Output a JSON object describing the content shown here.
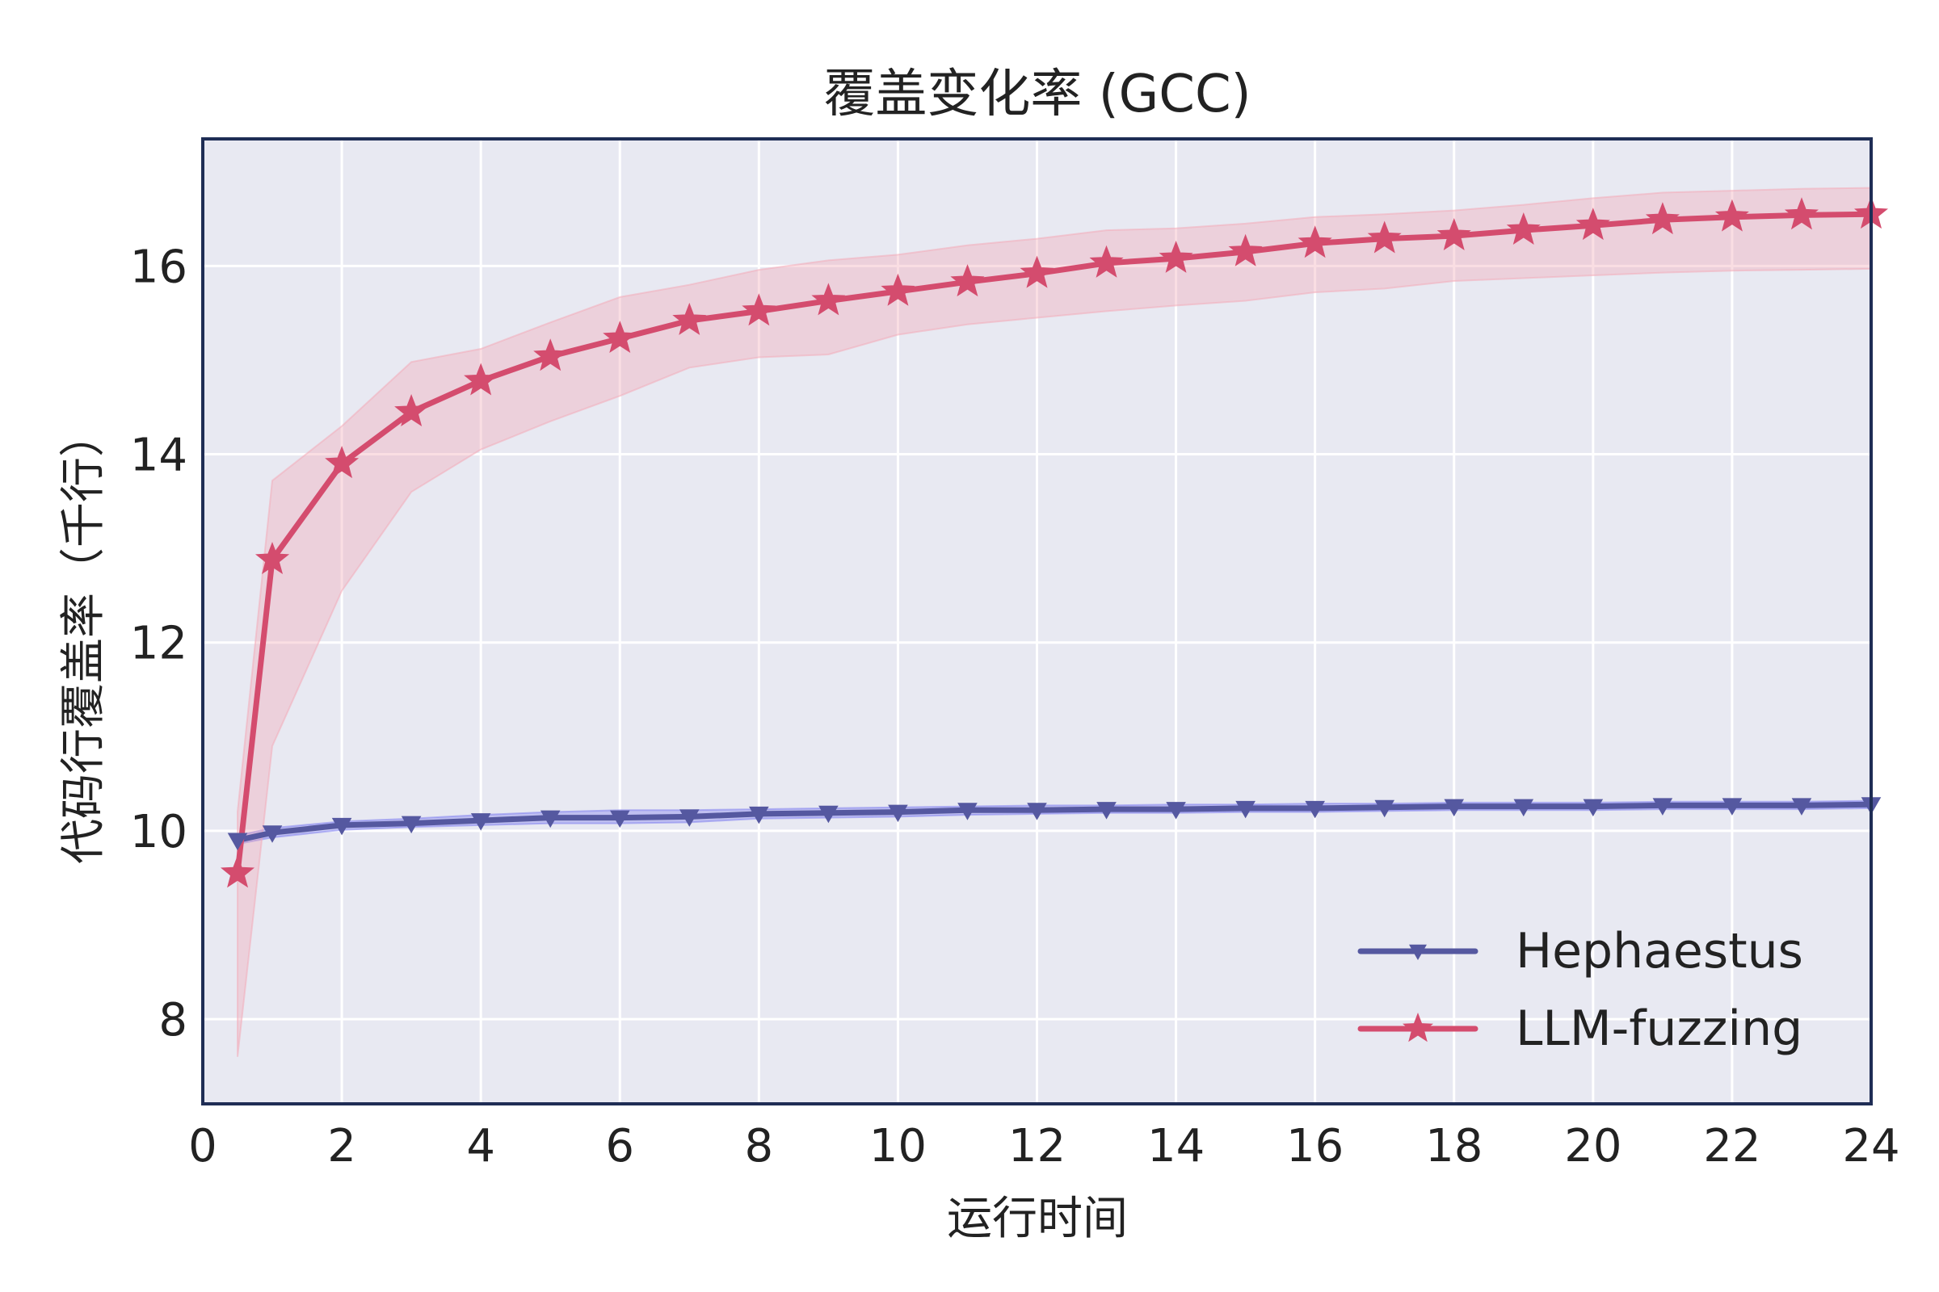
{
  "chart_data": {
    "type": "line",
    "title": "覆盖变化率 (GCC)",
    "xlabel": "运行时间",
    "ylabel": "代码行覆盖率（千行）",
    "xlim": [
      0,
      24
    ],
    "ylim": [
      7.1,
      17.35
    ],
    "xticks": [
      0,
      2,
      4,
      6,
      8,
      10,
      12,
      14,
      16,
      18,
      20,
      22,
      24
    ],
    "yticks": [
      8,
      10,
      12,
      14,
      16
    ],
    "grid": true,
    "legend_position": "lower-right",
    "background": "#e8e9f2",
    "x": [
      0.5,
      1,
      2,
      3,
      4,
      5,
      6,
      7,
      8,
      9,
      10,
      11,
      12,
      13,
      14,
      15,
      16,
      17,
      18,
      19,
      20,
      21,
      22,
      23,
      24
    ],
    "series": [
      {
        "name": "Hephaestus",
        "color": "#5558a0",
        "band_color": "#7b7cf0",
        "marker": "triangle-down",
        "values": [
          9.9,
          9.98,
          10.06,
          10.08,
          10.11,
          10.14,
          10.14,
          10.15,
          10.18,
          10.19,
          10.2,
          10.22,
          10.22,
          10.23,
          10.23,
          10.24,
          10.24,
          10.25,
          10.26,
          10.26,
          10.26,
          10.27,
          10.27,
          10.27,
          10.28
        ],
        "lower": [
          9.86,
          9.93,
          10.01,
          10.04,
          10.06,
          10.08,
          10.08,
          10.09,
          10.13,
          10.14,
          10.15,
          10.17,
          10.18,
          10.19,
          10.19,
          10.2,
          10.2,
          10.21,
          10.22,
          10.22,
          10.22,
          10.23,
          10.23,
          10.23,
          10.24
        ],
        "upper": [
          9.95,
          10.03,
          10.1,
          10.13,
          10.17,
          10.2,
          10.22,
          10.22,
          10.23,
          10.24,
          10.25,
          10.26,
          10.27,
          10.27,
          10.28,
          10.28,
          10.29,
          10.29,
          10.3,
          10.3,
          10.3,
          10.31,
          10.31,
          10.31,
          10.32
        ]
      },
      {
        "name": "LLM-fuzzing",
        "color": "#d44c6e",
        "band_color": "#f3a7b5",
        "marker": "star",
        "values": [
          9.55,
          12.88,
          13.9,
          14.45,
          14.78,
          15.04,
          15.23,
          15.42,
          15.52,
          15.63,
          15.73,
          15.83,
          15.92,
          16.03,
          16.08,
          16.15,
          16.24,
          16.29,
          16.32,
          16.38,
          16.43,
          16.49,
          16.52,
          16.54,
          16.55
        ],
        "lower": [
          7.6,
          10.9,
          12.55,
          13.6,
          14.05,
          14.35,
          14.62,
          14.92,
          15.03,
          15.06,
          15.27,
          15.38,
          15.45,
          15.52,
          15.58,
          15.63,
          15.72,
          15.76,
          15.84,
          15.87,
          15.9,
          15.93,
          15.95,
          15.96,
          15.97
        ],
        "upper": [
          10.2,
          13.72,
          14.3,
          14.98,
          15.12,
          15.4,
          15.67,
          15.8,
          15.96,
          16.06,
          16.12,
          16.22,
          16.29,
          16.38,
          16.4,
          16.45,
          16.52,
          16.55,
          16.59,
          16.65,
          16.72,
          16.78,
          16.8,
          16.82,
          16.83
        ]
      }
    ]
  }
}
